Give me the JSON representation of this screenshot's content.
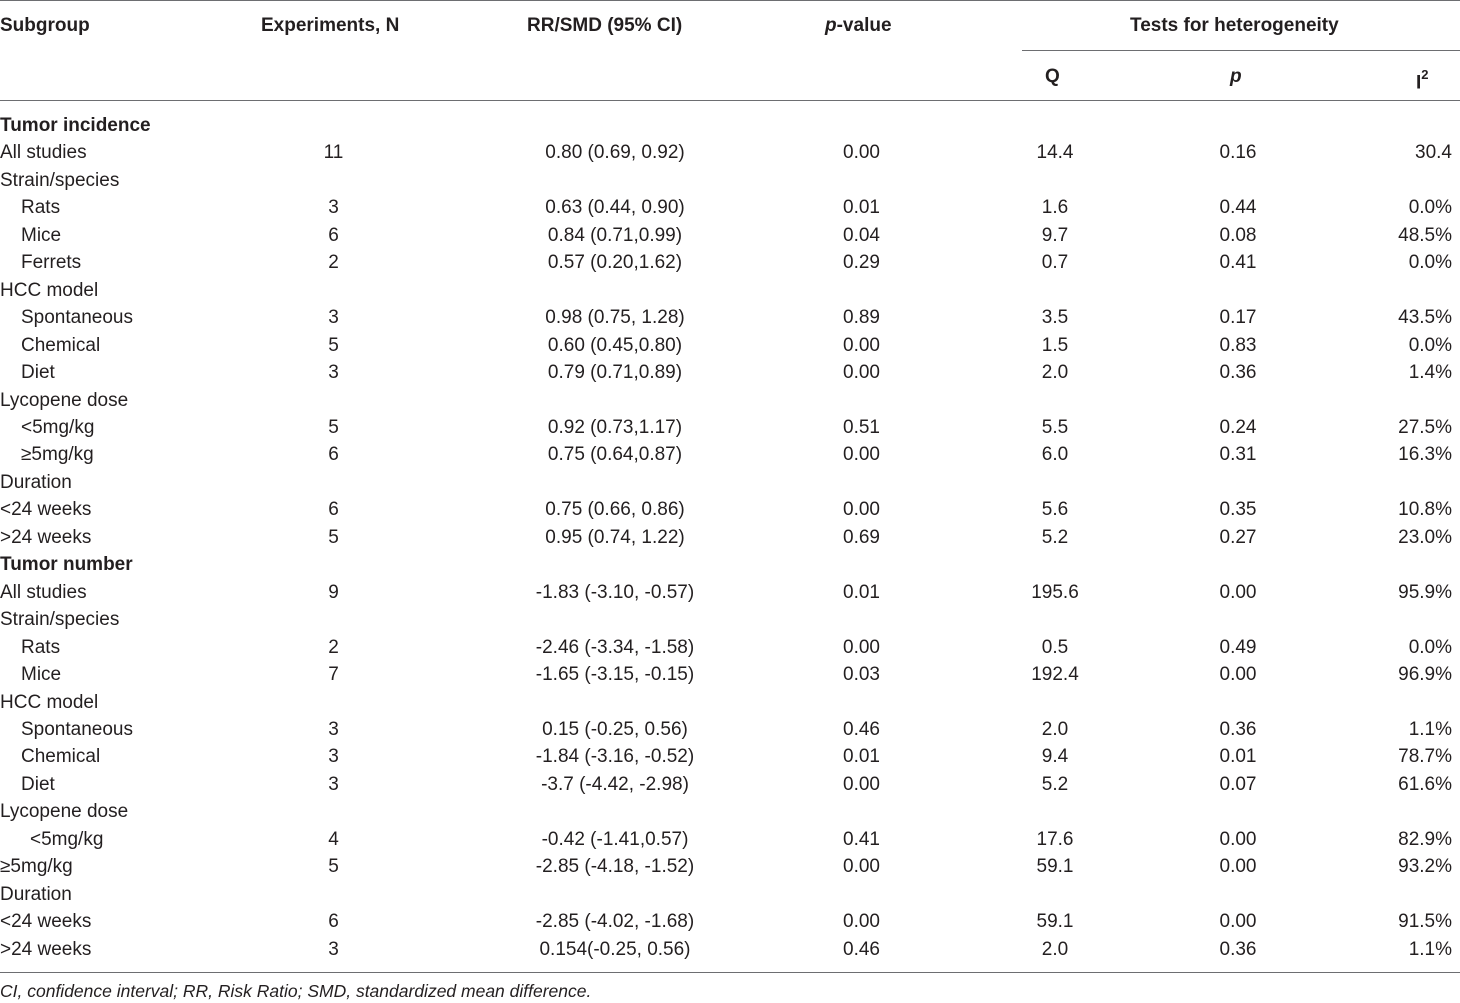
{
  "header": {
    "subgroup": "Subgroup",
    "experiments": "Experiments, N",
    "effect": "RR/SMD (95% CI)",
    "pvalue_italic": "p",
    "pvalue_rest": "-value",
    "heterogeneity": "Tests for heterogeneity",
    "q": "Q",
    "p": "p",
    "i2_base": "I",
    "i2_sup": "2"
  },
  "rows": [
    {
      "label": "Tumor incidence",
      "type": "section",
      "n": "",
      "effect": "",
      "pval": "",
      "q": "",
      "p": "",
      "i2": ""
    },
    {
      "label": "All studies",
      "type": "plain",
      "n": "11",
      "effect": "0.80 (0.69, 0.92)",
      "pval": "0.00",
      "q": "14.4",
      "p": "0.16",
      "i2": "30.4"
    },
    {
      "label": "Strain/species",
      "type": "plain",
      "n": "",
      "effect": "",
      "pval": "",
      "q": "",
      "p": "",
      "i2": ""
    },
    {
      "label": "Rats",
      "type": "ind1",
      "n": "3",
      "effect": "0.63 (0.44, 0.90)",
      "pval": "0.01",
      "q": "1.6",
      "p": "0.44",
      "i2": "0.0%"
    },
    {
      "label": "Mice",
      "type": "ind1",
      "n": "6",
      "effect": "0.84 (0.71,0.99)",
      "pval": "0.04",
      "q": "9.7",
      "p": "0.08",
      "i2": "48.5%"
    },
    {
      "label": "Ferrets",
      "type": "ind1",
      "n": "2",
      "effect": "0.57 (0.20,1.62)",
      "pval": "0.29",
      "q": "0.7",
      "p": "0.41",
      "i2": "0.0%"
    },
    {
      "label": "HCC model",
      "type": "plain",
      "n": "",
      "effect": "",
      "pval": "",
      "q": "",
      "p": "",
      "i2": ""
    },
    {
      "label": "Spontaneous",
      "type": "ind1",
      "n": "3",
      "effect": "0.98 (0.75, 1.28)",
      "pval": "0.89",
      "q": "3.5",
      "p": "0.17",
      "i2": "43.5%"
    },
    {
      "label": "Chemical",
      "type": "ind1",
      "n": "5",
      "effect": "0.60 (0.45,0.80)",
      "pval": "0.00",
      "q": "1.5",
      "p": "0.83",
      "i2": "0.0%"
    },
    {
      "label": "Diet",
      "type": "ind1",
      "n": "3",
      "effect": "0.79 (0.71,0.89)",
      "pval": "0.00",
      "q": "2.0",
      "p": "0.36",
      "i2": "1.4%"
    },
    {
      "label": "Lycopene dose",
      "type": "plain",
      "n": "",
      "effect": "",
      "pval": "",
      "q": "",
      "p": "",
      "i2": ""
    },
    {
      "label": "<5mg/kg",
      "type": "ind1",
      "n": "5",
      "effect": "0.92 (0.73,1.17)",
      "pval": "0.51",
      "q": "5.5",
      "p": "0.24",
      "i2": "27.5%"
    },
    {
      "label": "≥5mg/kg",
      "type": "ind1",
      "n": "6",
      "effect": "0.75 (0.64,0.87)",
      "pval": "0.00",
      "q": "6.0",
      "p": "0.31",
      "i2": "16.3%"
    },
    {
      "label": "Duration",
      "type": "plain",
      "n": "",
      "effect": "",
      "pval": "",
      "q": "",
      "p": "",
      "i2": ""
    },
    {
      "label": "<24 weeks",
      "type": "plain",
      "n": "6",
      "effect": "0.75 (0.66, 0.86)",
      "pval": "0.00",
      "q": "5.6",
      "p": "0.35",
      "i2": "10.8%"
    },
    {
      "label": ">24 weeks",
      "type": "plain",
      "n": "5",
      "effect": "0.95 (0.74, 1.22)",
      "pval": "0.69",
      "q": "5.2",
      "p": "0.27",
      "i2": "23.0%"
    },
    {
      "label": "Tumor number",
      "type": "section",
      "n": "",
      "effect": "",
      "pval": "",
      "q": "",
      "p": "",
      "i2": ""
    },
    {
      "label": "All studies",
      "type": "plain",
      "n": "9",
      "effect": "-1.83 (-3.10, -0.57)",
      "pval": "0.01",
      "q": "195.6",
      "p": "0.00",
      "i2": "95.9%"
    },
    {
      "label": "Strain/species",
      "type": "plain",
      "n": "",
      "effect": "",
      "pval": "",
      "q": "",
      "p": "",
      "i2": ""
    },
    {
      "label": "Rats",
      "type": "ind1",
      "n": "2",
      "effect": "-2.46 (-3.34, -1.58)",
      "pval": "0.00",
      "q": "0.5",
      "p": "0.49",
      "i2": "0.0%"
    },
    {
      "label": "Mice",
      "type": "ind1",
      "n": "7",
      "effect": "-1.65 (-3.15, -0.15)",
      "pval": "0.03",
      "q": "192.4",
      "p": "0.00",
      "i2": "96.9%"
    },
    {
      "label": "HCC model",
      "type": "plain",
      "n": "",
      "effect": "",
      "pval": "",
      "q": "",
      "p": "",
      "i2": ""
    },
    {
      "label": "Spontaneous",
      "type": "ind1",
      "n": "3",
      "effect": "0.15 (-0.25, 0.56)",
      "pval": "0.46",
      "q": "2.0",
      "p": "0.36",
      "i2": "1.1%"
    },
    {
      "label": "Chemical",
      "type": "ind1",
      "n": "3",
      "effect": "-1.84 (-3.16, -0.52)",
      "pval": "0.01",
      "q": "9.4",
      "p": "0.01",
      "i2": "78.7%"
    },
    {
      "label": "Diet",
      "type": "ind1",
      "n": "3",
      "effect": "-3.7 (-4.42, -2.98)",
      "pval": "0.00",
      "q": "5.2",
      "p": "0.07",
      "i2": "61.6%"
    },
    {
      "label": "Lycopene dose",
      "type": "plain",
      "n": "",
      "effect": "",
      "pval": "",
      "q": "",
      "p": "",
      "i2": ""
    },
    {
      "label": "<5mg/kg",
      "type": "ind2",
      "n": "4",
      "effect": "-0.42 (-1.41,0.57)",
      "pval": "0.41",
      "q": "17.6",
      "p": "0.00",
      "i2": "82.9%"
    },
    {
      "label": "≥5mg/kg",
      "type": "plain",
      "n": "5",
      "effect": "-2.85 (-4.18, -1.52)",
      "pval": "0.00",
      "q": "59.1",
      "p": "0.00",
      "i2": "93.2%"
    },
    {
      "label": "Duration",
      "type": "plain",
      "n": "",
      "effect": "",
      "pval": "",
      "q": "",
      "p": "",
      "i2": ""
    },
    {
      "label": "<24 weeks",
      "type": "plain",
      "n": "6",
      "effect": "-2.85 (-4.02, -1.68)",
      "pval": "0.00",
      "q": "59.1",
      "p": "0.00",
      "i2": "91.5%"
    },
    {
      "label": ">24 weeks",
      "type": "plain",
      "n": "3",
      "effect": "0.154(-0.25, 0.56)",
      "pval": "0.46",
      "q": "2.0",
      "p": "0.36",
      "i2": "1.1%"
    }
  ],
  "footnote": "CI, confidence interval; RR, Risk Ratio; SMD, standardized mean difference."
}
